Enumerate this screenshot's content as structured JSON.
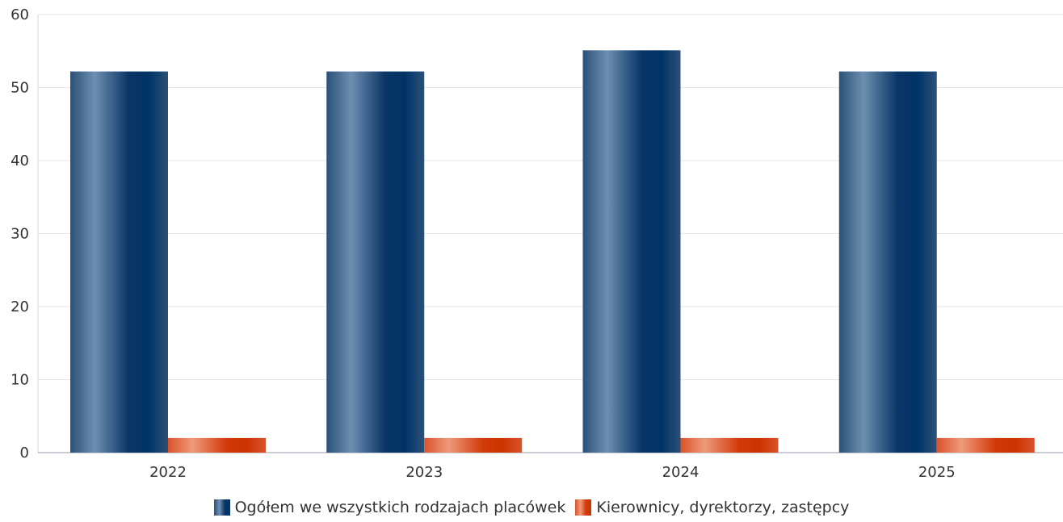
{
  "chart_data": {
    "type": "bar",
    "categories": [
      "2022",
      "2023",
      "2024",
      "2025"
    ],
    "series": [
      {
        "name": "Ogółem we wszystkich rodzajach placówek",
        "values": [
          52.2,
          52.2,
          55.1,
          52.2
        ],
        "color": "#003366"
      },
      {
        "name": "Kierownicy, dyrektorzy, zastępcy",
        "values": [
          2,
          2,
          2,
          2
        ],
        "color": "#cc3300"
      }
    ],
    "title": "",
    "xlabel": "",
    "ylabel": "",
    "ylim": [
      0,
      60
    ],
    "yticks": [
      "0",
      "10",
      "20",
      "30",
      "40",
      "50",
      "60"
    ],
    "grid": true,
    "legend_position": "bottom"
  }
}
